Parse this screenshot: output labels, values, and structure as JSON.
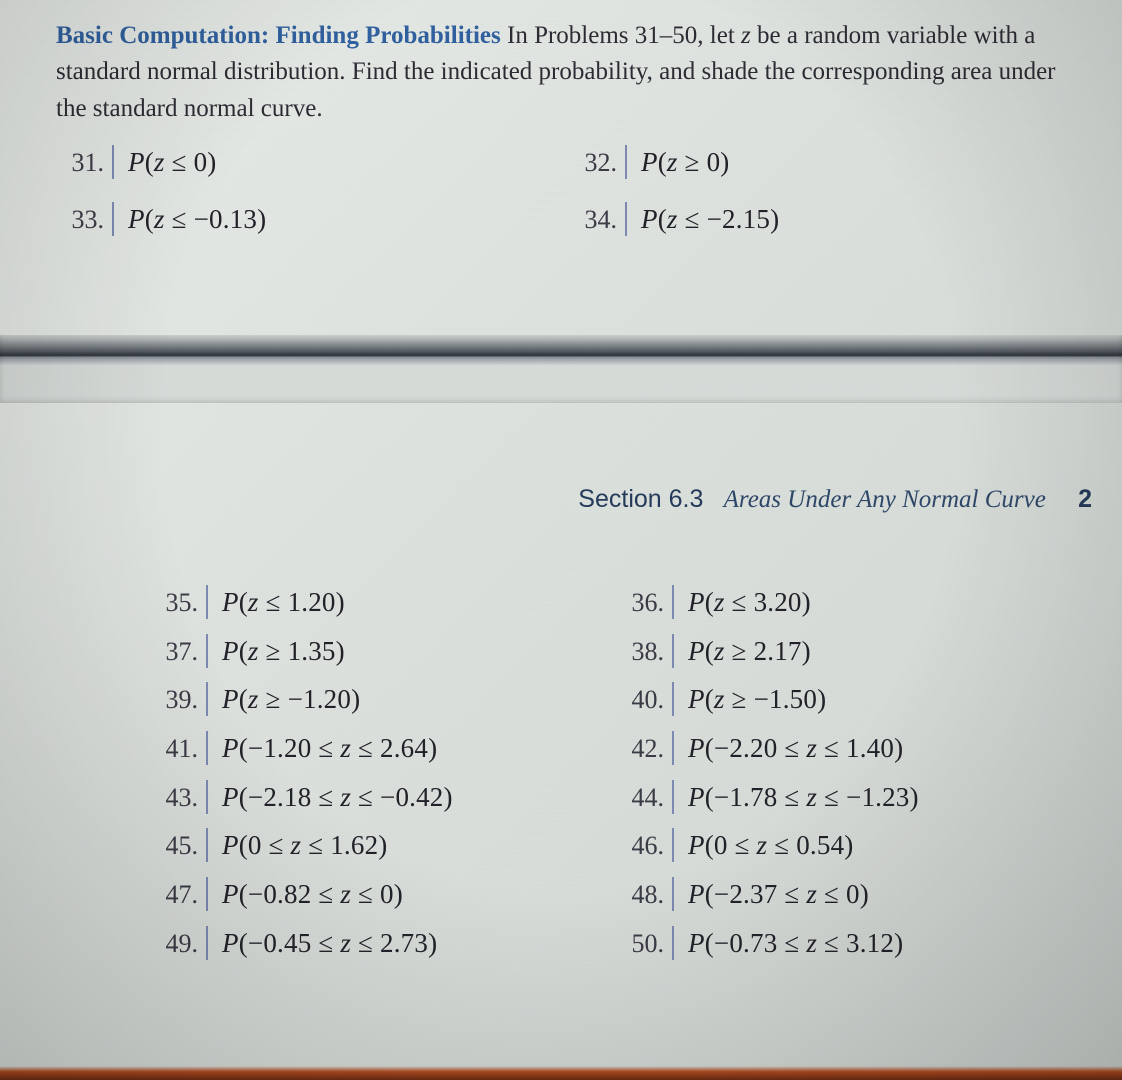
{
  "colors": {
    "lead": "#2f5f9e",
    "text": "#2b2b33",
    "bar": "#7d89b2",
    "section": "#243a5a",
    "bg_from": "#e8ece8",
    "bg_to": "#d0d6d2",
    "bottom_edge": "#b24a1e"
  },
  "fonts": {
    "body_family": "Times New Roman",
    "body_size_pt": 19,
    "problem_size_pt": 20,
    "section_family": "Helvetica Neue"
  },
  "intro": {
    "lead": "Basic Computation: Finding Probabilities",
    "rest1": "  In Problems 31–50, let ",
    "zvar": "z",
    "rest2": " be a random variable with a standard normal distribution. Find the indicated probability, and shade the corresponding area under the standard normal curve."
  },
  "top_problems": [
    {
      "l_num": "31.",
      "l_expr": "P(z ≤ 0)",
      "r_num": "32.",
      "r_expr": "P(z ≥ 0)"
    },
    {
      "l_num": "33.",
      "l_expr": "P(z ≤ −0.13)",
      "r_num": "34.",
      "r_expr": "P(z ≤ −2.15)"
    }
  ],
  "section": {
    "label": "Section 6.3",
    "title": "Areas Under Any Normal Curve",
    "page_fragment": "2"
  },
  "bottom_problems": [
    {
      "l_num": "35.",
      "l_expr": "P(z ≤ 1.20)",
      "r_num": "36.",
      "r_expr": "P(z ≤ 3.20)"
    },
    {
      "l_num": "37.",
      "l_expr": "P(z ≥ 1.35)",
      "r_num": "38.",
      "r_expr": "P(z ≥ 2.17)"
    },
    {
      "l_num": "39.",
      "l_expr": "P(z ≥ −1.20)",
      "r_num": "40.",
      "r_expr": "P(z ≥ −1.50)"
    },
    {
      "l_num": "41.",
      "l_expr": "P(−1.20 ≤ z ≤ 2.64)",
      "r_num": "42.",
      "r_expr": "P(−2.20 ≤ z ≤ 1.40)"
    },
    {
      "l_num": "43.",
      "l_expr": "P(−2.18 ≤ z ≤ −0.42)",
      "r_num": "44.",
      "r_expr": "P(−1.78 ≤ z ≤ −1.23)"
    },
    {
      "l_num": "45.",
      "l_expr": "P(0 ≤ z ≤ 1.62)",
      "r_num": "46.",
      "r_expr": "P(0 ≤ z ≤ 0.54)"
    },
    {
      "l_num": "47.",
      "l_expr": "P(−0.82 ≤ z ≤ 0)",
      "r_num": "48.",
      "r_expr": "P(−2.37 ≤ z ≤ 0)"
    },
    {
      "l_num": "49.",
      "l_expr": "P(−0.45 ≤ z ≤ 2.73)",
      "r_num": "50.",
      "r_expr": "P(−0.73 ≤ z ≤ 3.12)"
    }
  ]
}
